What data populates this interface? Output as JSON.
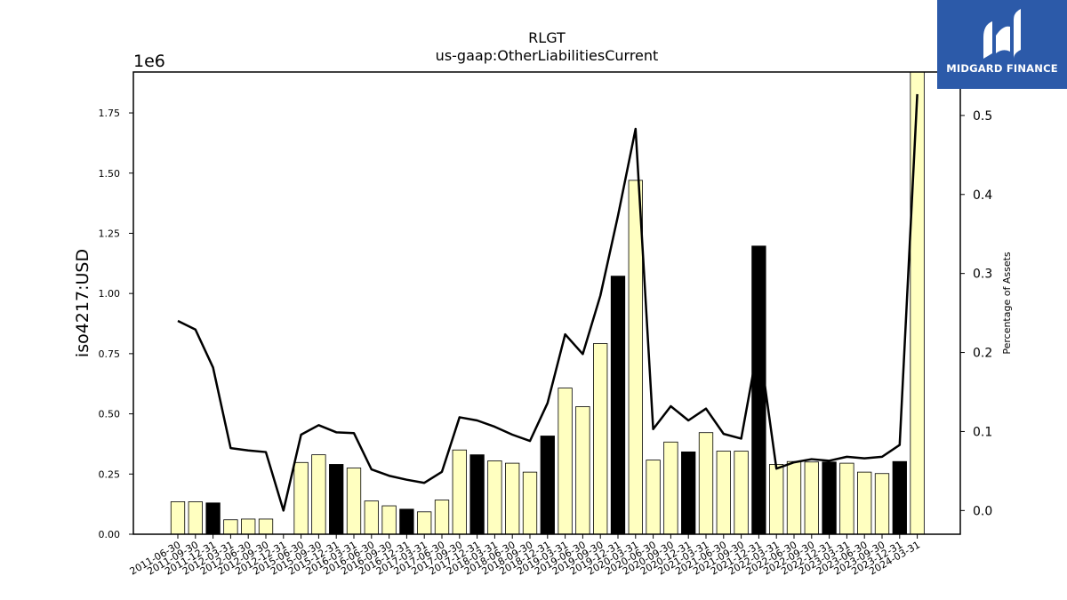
{
  "brand": {
    "name": "MIDGARD FINANCE",
    "color": "#2c5aa9"
  },
  "colors": {
    "bar_regular": "#ffffc0",
    "bar_highlight": "#000000",
    "line": "#000000"
  },
  "chart_data": {
    "type": "bar",
    "title": "RLGT",
    "subtitle": "us-gaap:OtherLiabilitiesCurrent",
    "ylabel": "iso4217:USD",
    "y_offset_text": "1e6",
    "y2label": "Percentage of Assets",
    "ylim": [
      0,
      1920000
    ],
    "y2lim": [
      -0.03,
      0.555
    ],
    "yticks": [
      0,
      250000,
      500000,
      750000,
      1000000,
      1250000,
      1500000,
      1750000
    ],
    "yticklabels": [
      "0.00",
      "0.25",
      "0.50",
      "0.75",
      "1.00",
      "1.25",
      "1.50",
      "1.75"
    ],
    "y2ticks": [
      0.0,
      0.1,
      0.2,
      0.3,
      0.4,
      0.5
    ],
    "y2ticklabels": [
      "0.0",
      "0.1",
      "0.2",
      "0.3",
      "0.4",
      "0.5"
    ],
    "categories": [
      "2011-06-30",
      "2011-09-30",
      "2011-12-31",
      "2012-03-31",
      "2012-06-30",
      "2012-09-30",
      "2012-12-31",
      "2015-06-30",
      "2015-09-30",
      "2015-12-31",
      "2016-03-31",
      "2016-06-30",
      "2016-09-30",
      "2016-12-31",
      "2017-03-31",
      "2017-06-30",
      "2017-09-30",
      "2017-12-31",
      "2018-03-31",
      "2018-06-30",
      "2018-09-30",
      "2018-12-31",
      "2019-03-31",
      "2019-06-30",
      "2019-09-30",
      "2019-12-31",
      "2020-03-31",
      "2020-06-30",
      "2020-09-30",
      "2020-12-31",
      "2021-03-31",
      "2021-06-30",
      "2021-09-30",
      "2021-12-31",
      "2022-03-31",
      "2022-06-30",
      "2022-09-30",
      "2022-12-31",
      "2023-03-31",
      "2023-06-30",
      "2023-09-30",
      "2023-12-31",
      "2024-03-31"
    ],
    "series": [
      {
        "type": "bar",
        "axis": "left",
        "values": [
          135000,
          135000,
          130000,
          60000,
          63000,
          63000,
          0,
          298000,
          330000,
          290000,
          275000,
          138000,
          118000,
          104000,
          93000,
          142000,
          350000,
          330000,
          305000,
          295000,
          258000,
          408000,
          607000,
          530000,
          792000,
          1072000,
          1470000,
          308000,
          383000,
          342000,
          422000,
          345000,
          345000,
          1197000,
          290000,
          302000,
          300000,
          300000,
          295000,
          258000,
          252000,
          302000,
          1920000
        ],
        "highlight": [
          false,
          false,
          true,
          false,
          false,
          false,
          false,
          false,
          false,
          true,
          false,
          false,
          false,
          true,
          false,
          false,
          false,
          true,
          false,
          false,
          false,
          true,
          false,
          false,
          false,
          true,
          false,
          false,
          false,
          true,
          false,
          false,
          false,
          true,
          false,
          false,
          false,
          true,
          false,
          false,
          false,
          true,
          false
        ]
      },
      {
        "type": "line",
        "axis": "right",
        "values": [
          0.24,
          0.229,
          0.181,
          0.079,
          0.076,
          0.074,
          0.0,
          0.096,
          0.108,
          0.099,
          0.098,
          0.052,
          0.044,
          0.039,
          0.035,
          0.049,
          0.118,
          0.114,
          0.106,
          0.096,
          0.088,
          0.136,
          0.223,
          0.198,
          0.272,
          0.373,
          0.483,
          0.103,
          0.132,
          0.114,
          0.129,
          0.097,
          0.091,
          0.214,
          0.053,
          0.061,
          0.065,
          0.063,
          0.068,
          0.066,
          0.068,
          0.083,
          0.527
        ]
      }
    ]
  }
}
